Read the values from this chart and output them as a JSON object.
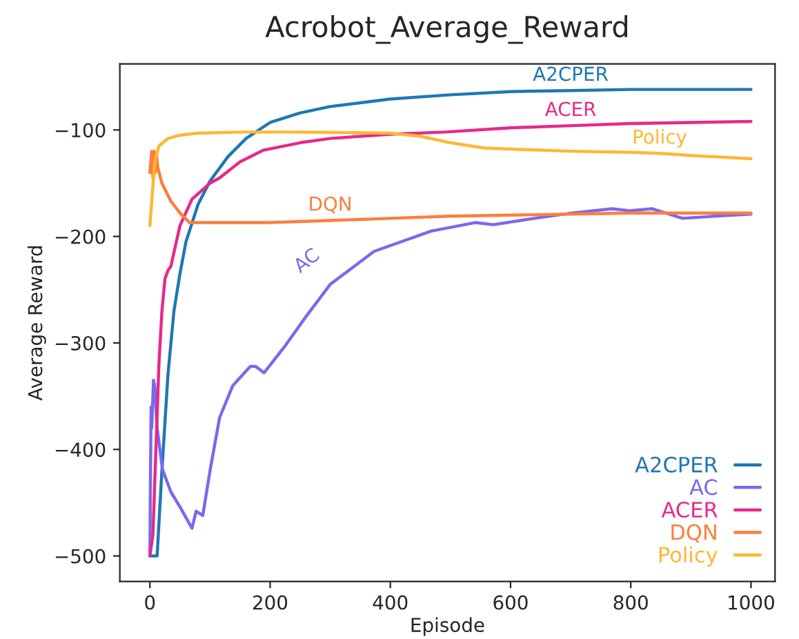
{
  "chart_data": {
    "type": "line",
    "title": "Acrobot_Average_Reward",
    "xlabel": "Episode",
    "ylabel": "Average Reward",
    "xlim": [
      -50,
      1040
    ],
    "ylim": [
      -524,
      -38
    ],
    "xticks": [
      0,
      200,
      400,
      600,
      800,
      1000
    ],
    "yticks": [
      -500,
      -400,
      -300,
      -200,
      -100
    ],
    "grid": false,
    "legend": "bottom right",
    "line_style": "solid",
    "marker": "none",
    "series": [
      {
        "name": "A2CPER",
        "color": "#1f77b4",
        "x": [
          0,
          12,
          20,
          30,
          40,
          50,
          60,
          80,
          100,
          130,
          160,
          200,
          250,
          300,
          400,
          500,
          600,
          700,
          800,
          900,
          1000
        ],
        "values": [
          -500,
          -500,
          -420,
          -330,
          -270,
          -235,
          -205,
          -170,
          -148,
          -125,
          -108,
          -93,
          -84,
          -78,
          -71,
          -67,
          -64,
          -63,
          -62,
          -62,
          -62
        ]
      },
      {
        "name": "AC",
        "color": "#7b68ee",
        "x": [
          0,
          1,
          2,
          3,
          6,
          8,
          12,
          21,
          35,
          50,
          70,
          77,
          88,
          100,
          116,
          138,
          167,
          176,
          190,
          226,
          260,
          300,
          373,
          468,
          541,
          571,
          640,
          703,
          769,
          798,
          835,
          886,
          940,
          1000
        ],
        "values": [
          -500,
          -420,
          -360,
          -380,
          -335,
          -340,
          -380,
          -419,
          -440,
          -454,
          -474,
          -458,
          -462,
          -420,
          -370,
          -340,
          -322,
          -322,
          -328,
          -302,
          -275,
          -245,
          -214,
          -195,
          -187,
          -189,
          -183,
          -178,
          -174,
          -176,
          -174,
          -183,
          -181,
          -179
        ]
      },
      {
        "name": "ACER",
        "color": "#e7298a",
        "x": [
          0,
          5,
          10,
          15,
          20,
          25,
          30,
          35,
          40,
          50,
          70,
          100,
          116,
          150,
          189,
          250,
          300,
          400,
          490,
          600,
          700,
          800,
          900,
          1000
        ],
        "values": [
          -500,
          -480,
          -400,
          -320,
          -270,
          -240,
          -232,
          -228,
          -215,
          -190,
          -165,
          -150,
          -145,
          -130,
          -119,
          -112,
          -108,
          -104,
          -102,
          -98,
          -96,
          -94,
          -93,
          -92
        ]
      },
      {
        "name": "DQN",
        "color": "#fc7f3c",
        "x": [
          0,
          3,
          5,
          7,
          9,
          11,
          13,
          20,
          35,
          50,
          66,
          100,
          200,
          300,
          400,
          500,
          600,
          700,
          800,
          900,
          1000
        ],
        "values": [
          -140,
          -120,
          -145,
          -120,
          -140,
          -122,
          -135,
          -150,
          -167,
          -178,
          -187,
          -187,
          -187,
          -185,
          -183,
          -181,
          -180,
          -179,
          -178,
          -178,
          -178
        ]
      },
      {
        "name": "Policy",
        "color": "#ffb732",
        "x": [
          0,
          4,
          8,
          15,
          30,
          50,
          80,
          150,
          250,
          400,
          450,
          500,
          556,
          600,
          700,
          800,
          848,
          900,
          1000
        ],
        "values": [
          -190,
          -160,
          -130,
          -115,
          -108,
          -105,
          -103,
          -102,
          -102,
          -103,
          -106,
          -112,
          -117,
          -118,
          -120,
          -121,
          -122,
          -124,
          -127
        ]
      }
    ],
    "annotations": [
      {
        "text": "A2CPER",
        "x": 700,
        "y": -63
      },
      {
        "text": "ACER",
        "x": 700,
        "y": -96
      },
      {
        "text": "Policy",
        "x": 848,
        "y": -122
      },
      {
        "text": "DQN",
        "x": 300,
        "y": -185
      },
      {
        "text": "AC",
        "x": 300,
        "y": -245
      }
    ]
  }
}
